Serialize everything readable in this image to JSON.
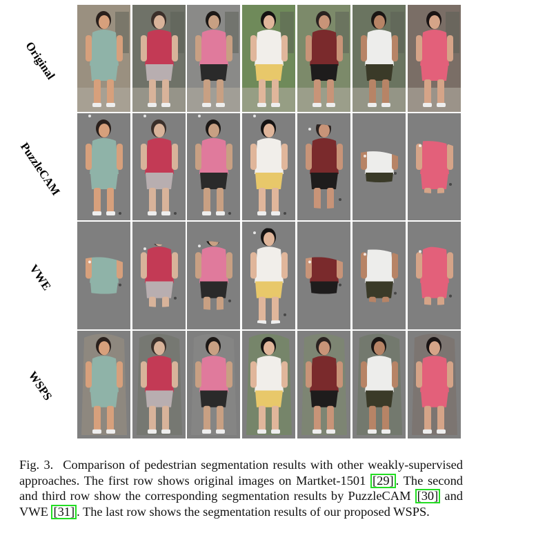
{
  "figure": {
    "row_labels": [
      "Original",
      "PuzzleCAM",
      "VWE",
      "WSPS"
    ],
    "columns": [
      {
        "shirt": "#8fb3a8",
        "pants": "#8fb3a8",
        "skin": "#d7a07c",
        "hair": "#2a201c",
        "bg": "#9a9080"
      },
      {
        "shirt": "#c33a55",
        "pants": "#b8aeb0",
        "skin": "#d8b39a",
        "hair": "#3a2f2a",
        "bg": "#6f7268"
      },
      {
        "shirt": "#e07a9c",
        "pants": "#2a2a2a",
        "skin": "#c8a083",
        "hair": "#1c1816",
        "bg": "#8a8a88"
      },
      {
        "shirt": "#f1eeea",
        "pants": "#e8c86a",
        "skin": "#e0b69b",
        "hair": "#141212",
        "bg": "#6f8a5a"
      },
      {
        "shirt": "#7a2a2c",
        "pants": "#1e1c1c",
        "skin": "#c89478",
        "hair": "#2a2220",
        "bg": "#7c8a6a"
      },
      {
        "shirt": "#ededeb",
        "pants": "#3a3a28",
        "skin": "#b78466",
        "hair": "#1a1614",
        "bg": "#6a7460"
      },
      {
        "shirt": "#e3607a",
        "pants": "#e3607a",
        "skin": "#d5a488",
        "hair": "#1a1414",
        "bg": "#7a6e66"
      }
    ],
    "mask_gray": "#7f7f7f",
    "rows": [
      {
        "mode": "full"
      },
      {
        "mode": "partial",
        "keep": [
          1,
          1,
          1,
          1,
          0.75,
          0.25,
          0.45
        ]
      },
      {
        "mode": "partial",
        "keep": [
          0.3,
          0.55,
          0.6,
          0.85,
          0.3,
          0.45,
          0.5
        ]
      },
      {
        "mode": "full-masked"
      }
    ]
  },
  "caption": {
    "fig_label": "Fig. 3.",
    "part1": "Comparison of pedestrian segmentation results with other weakly-supervised approaches. The first row shows original images on Martket-1501 ",
    "cite1": "[29]",
    "part2": ". The second and third row show the corresponding segmentation results by PuzzleCAM ",
    "cite2": "[30]",
    "part3": " and VWE ",
    "cite3": "[31]",
    "part4": ". The last row shows the segmentation results of our proposed WSPS."
  }
}
